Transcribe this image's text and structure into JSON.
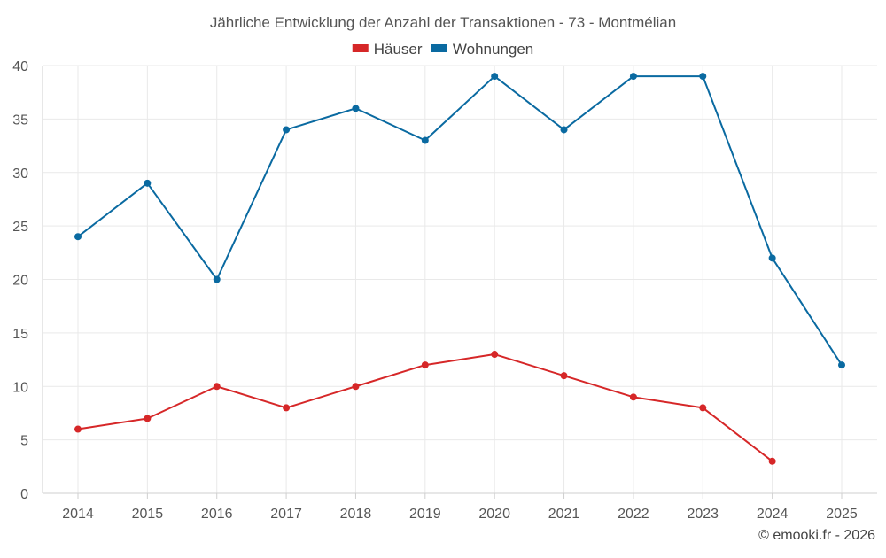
{
  "chart_data": {
    "type": "line",
    "title": "Jährliche Entwicklung der Anzahl der Transaktionen - 73 - Montmélian",
    "xlabel": "",
    "ylabel": "",
    "categories": [
      "2014",
      "2015",
      "2016",
      "2017",
      "2018",
      "2019",
      "2020",
      "2021",
      "2022",
      "2023",
      "2024",
      "2025"
    ],
    "ylim": [
      0,
      40
    ],
    "yticks": [
      0,
      5,
      10,
      15,
      20,
      25,
      30,
      35,
      40
    ],
    "grid": true,
    "legend_position": "top-center",
    "series": [
      {
        "name": "Häuser",
        "color": "#d62728",
        "values": [
          6,
          7,
          10,
          8,
          10,
          12,
          13,
          11,
          9,
          8,
          3,
          null
        ]
      },
      {
        "name": "Wohnungen",
        "color": "#0a6aa1",
        "values": [
          24,
          29,
          20,
          34,
          36,
          33,
          39,
          34,
          39,
          39,
          22,
          12
        ]
      }
    ]
  },
  "credit": "© emooki.fr - 2026"
}
